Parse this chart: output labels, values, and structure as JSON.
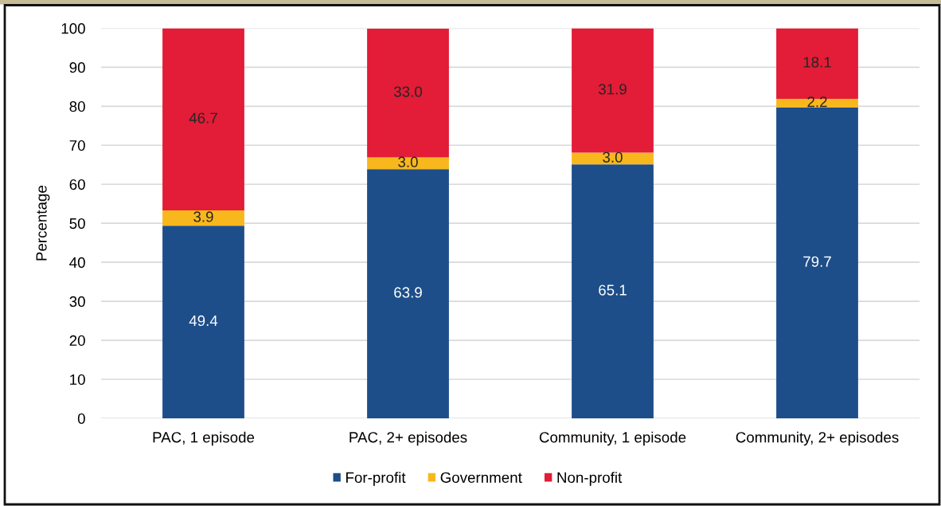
{
  "chart_data": {
    "type": "bar",
    "stacked": true,
    "ylabel": "Percentage",
    "categories": [
      "PAC, 1 episode",
      "PAC, 2+ episodes",
      "Community, 1 episode",
      "Community, 2+ episodes"
    ],
    "series": [
      {
        "name": "For-profit",
        "color": "#1d4e89",
        "values": [
          49.4,
          63.9,
          65.1,
          79.7
        ],
        "value_labels": [
          "49.4",
          "63.9",
          "65.1",
          "79.7"
        ]
      },
      {
        "name": "Government",
        "color": "#f8b71c",
        "values": [
          3.9,
          3.0,
          3.0,
          2.2
        ],
        "value_labels": [
          "3.9",
          "3.0",
          "3.0",
          "2.2"
        ]
      },
      {
        "name": "Non-profit",
        "color": "#e31c37",
        "values": [
          46.7,
          33.0,
          31.9,
          18.1
        ],
        "value_labels": [
          "46.7",
          "33.0",
          "31.9",
          "18.1"
        ]
      }
    ],
    "ylim": [
      0,
      100
    ],
    "yticks": [
      0,
      10,
      20,
      30,
      40,
      50,
      60,
      70,
      80,
      90,
      100
    ],
    "grid": "y",
    "legend": "bottom"
  }
}
